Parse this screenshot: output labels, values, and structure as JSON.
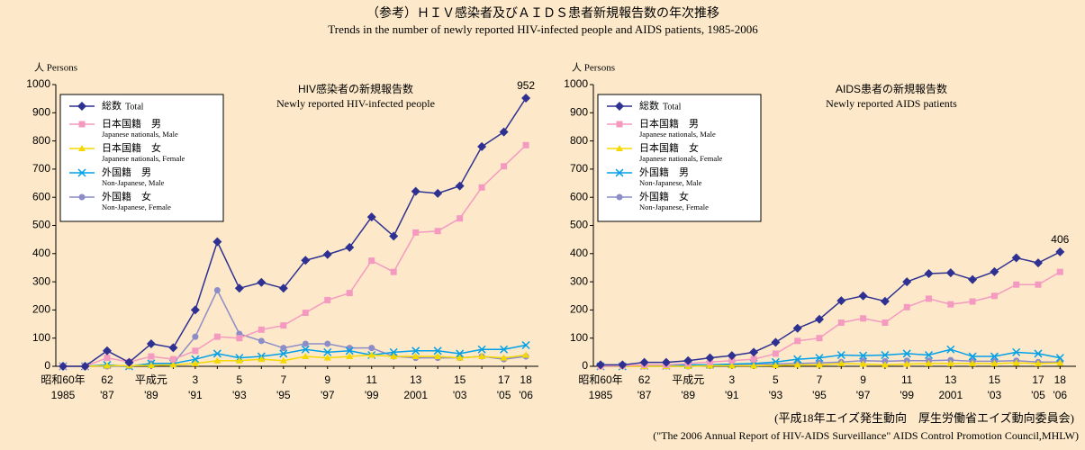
{
  "title": "（参考）ＨＩＶ感染者及びＡＩＤＳ患者新規報告数の年次推移",
  "subtitle": "Trends in the number of newly reported HIV-infected people and AIDS patients, 1985-2006",
  "source": "(平成18年エイズ発生動向　厚生労働省エイズ動向委員会)",
  "source_en": "(\"The 2006 Annual Report of HIV-AIDS Surveillance\" AIDS Control Promotion Council,MHLW)",
  "chart_data": [
    {
      "type": "line",
      "title": "HIV感染者の新規報告数",
      "subtitle": "Newly reported HIV-infected people",
      "y_label": "人 Persons",
      "categories": [
        "昭和60年",
        null,
        "62",
        null,
        "平成元",
        null,
        "3",
        null,
        "5",
        null,
        "7",
        null,
        "9",
        null,
        "11",
        null,
        "13",
        null,
        "15",
        null,
        "17",
        "18"
      ],
      "categories_western": [
        "1985",
        null,
        "'87",
        null,
        "'89",
        null,
        "'91",
        null,
        "'93",
        null,
        "'95",
        null,
        "'97",
        null,
        "'99",
        null,
        "2001",
        null,
        "'03",
        null,
        "'05",
        "'06"
      ],
      "ylim": [
        0,
        1000
      ],
      "yticks": [
        0,
        100,
        200,
        300,
        400,
        500,
        600,
        700,
        800,
        900,
        1000
      ],
      "legend": "upper left",
      "series": [
        {
          "name": "総数",
          "name_en": "Total",
          "color": "#2e3192",
          "marker": "diamond",
          "value_label_last": true,
          "values": [
            0,
            0,
            55,
            14,
            80,
            66,
            200,
            442,
            277,
            298,
            277,
            376,
            397,
            422,
            530,
            462,
            621,
            614,
            640,
            780,
            832,
            952
          ]
        },
        {
          "name": "日本国籍　男",
          "name_en": "Japanese nationals, Male",
          "color": "#f49ac1",
          "marker": "square",
          "values": [
            0,
            0,
            30,
            15,
            35,
            25,
            55,
            105,
            100,
            130,
            145,
            190,
            235,
            260,
            375,
            335,
            475,
            480,
            525,
            635,
            710,
            785
          ]
        },
        {
          "name": "日本国籍　女",
          "name_en": "Japanese nationals, Female",
          "color": "#f5d800",
          "marker": "triangle",
          "values": [
            0,
            0,
            2,
            2,
            3,
            5,
            10,
            20,
            20,
            25,
            20,
            35,
            30,
            35,
            40,
            35,
            35,
            35,
            30,
            35,
            30,
            40
          ]
        },
        {
          "name": "外国籍　男",
          "name_en": "Non-Japanese, Male",
          "color": "#00a0e9",
          "marker": "x",
          "values": [
            0,
            0,
            5,
            0,
            10,
            10,
            25,
            45,
            30,
            35,
            45,
            60,
            50,
            55,
            40,
            50,
            55,
            55,
            45,
            60,
            60,
            75
          ]
        },
        {
          "name": "外国籍　女",
          "name_en": "Non-Japanese, Female",
          "color": "#8c8cc8",
          "marker": "circle",
          "values": [
            0,
            0,
            0,
            0,
            10,
            10,
            105,
            270,
            115,
            90,
            65,
            80,
            80,
            65,
            65,
            35,
            30,
            30,
            30,
            35,
            25,
            35
          ]
        }
      ]
    },
    {
      "type": "line",
      "title": "AIDS患者の新規報告数",
      "subtitle": "Newly reported AIDS patients",
      "y_label": "人 Persons",
      "categories": [
        "昭和60年",
        null,
        "62",
        null,
        "平成元",
        null,
        "3",
        null,
        "5",
        null,
        "7",
        null,
        "9",
        null,
        "11",
        null,
        "13",
        null,
        "15",
        null,
        "17",
        "18"
      ],
      "categories_western": [
        "1985",
        null,
        "'87",
        null,
        "'89",
        null,
        "'91",
        null,
        "'93",
        null,
        "'95",
        null,
        "'97",
        null,
        "'99",
        null,
        "2001",
        null,
        "'03",
        null,
        "'05",
        "'06"
      ],
      "ylim": [
        0,
        1000
      ],
      "yticks": [
        0,
        100,
        200,
        300,
        400,
        500,
        600,
        700,
        800,
        900,
        1000
      ],
      "legend": "upper left",
      "series": [
        {
          "name": "総数",
          "name_en": "Total",
          "color": "#2e3192",
          "marker": "diamond",
          "value_label_last": true,
          "values": [
            5,
            5,
            14,
            14,
            20,
            30,
            38,
            50,
            85,
            135,
            167,
            233,
            250,
            231,
            300,
            329,
            332,
            308,
            336,
            385,
            367,
            406
          ]
        },
        {
          "name": "日本国籍　男",
          "name_en": "Japanese nationals, Male",
          "color": "#f49ac1",
          "marker": "square",
          "values": [
            0,
            2,
            5,
            5,
            10,
            15,
            20,
            25,
            45,
            90,
            100,
            155,
            170,
            155,
            210,
            240,
            220,
            230,
            250,
            290,
            290,
            335
          ]
        },
        {
          "name": "日本国籍　女",
          "name_en": "Japanese nationals, Female",
          "color": "#f5d800",
          "marker": "triangle",
          "values": [
            0,
            0,
            0,
            0,
            0,
            2,
            2,
            2,
            3,
            5,
            5,
            10,
            8,
            5,
            8,
            10,
            10,
            10,
            10,
            12,
            10,
            12
          ]
        },
        {
          "name": "外国籍　男",
          "name_en": "Non-Japanese, Male",
          "color": "#00a0e9",
          "marker": "x",
          "values": [
            0,
            0,
            2,
            2,
            5,
            5,
            8,
            10,
            15,
            25,
            30,
            40,
            38,
            40,
            45,
            40,
            60,
            35,
            35,
            50,
            45,
            30
          ]
        },
        {
          "name": "外国籍　女",
          "name_en": "Non-Japanese, Female",
          "color": "#8c8cc8",
          "marker": "circle",
          "values": [
            0,
            0,
            0,
            0,
            0,
            2,
            5,
            8,
            8,
            10,
            12,
            15,
            20,
            18,
            20,
            20,
            22,
            18,
            18,
            20,
            15,
            15
          ]
        }
      ]
    }
  ]
}
